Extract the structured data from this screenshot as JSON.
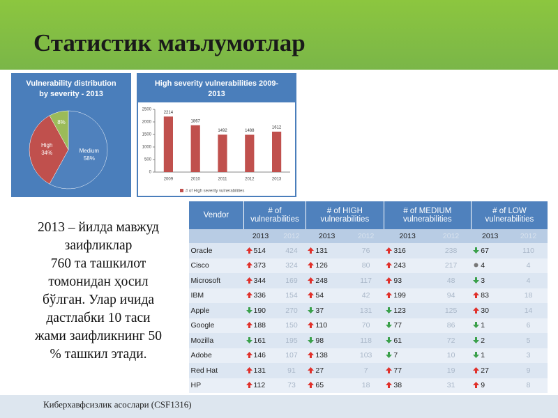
{
  "title": "Статистик маълумотлар",
  "chart_data": [
    {
      "type": "pie",
      "title": "Vulnerability distribution by severity - 2013",
      "categories": [
        "Medium",
        "High",
        "Low"
      ],
      "values": [
        58,
        34,
        8
      ],
      "value_labels": [
        "58%",
        "34%",
        "8%"
      ],
      "colors": [
        "#4f81bd",
        "#c0504d",
        "#9bbb59"
      ]
    },
    {
      "type": "bar",
      "title": "High severity vulnerabilities 2009-2013",
      "categories": [
        "2009",
        "2010",
        "2011",
        "2012",
        "2013"
      ],
      "series": [
        {
          "name": "# of High severity vulnerabilities",
          "color": "#c0504d",
          "values": [
            2214,
            1867,
            1492,
            1488,
            1612
          ]
        }
      ],
      "ylim": [
        0,
        2500
      ],
      "yticks": [
        0,
        500,
        1000,
        1500,
        2000,
        2500
      ]
    }
  ],
  "text": [
    "2013 – йилда мавжуд",
    "заифликлар",
    "760 та ташкилот",
    "томонидан ҳосил",
    "бўлган. Улар ичида",
    "дастлабки 10 таси",
    "жами заифликнинг 50",
    "% ташкил этади."
  ],
  "table": {
    "columns": [
      "Vendor",
      "# of vulnerabilities",
      "# of HIGH vulnerabilities",
      "# of MEDIUM vulnerabilities",
      "# of LOW vulnerabilities"
    ],
    "years": [
      "2013",
      "2012"
    ],
    "rows": [
      {
        "vendor": "Oracle",
        "values": [
          [
            514,
            424
          ],
          [
            131,
            76
          ],
          [
            316,
            238
          ],
          [
            67,
            110
          ]
        ]
      },
      {
        "vendor": "Cisco",
        "values": [
          [
            373,
            324
          ],
          [
            126,
            80
          ],
          [
            243,
            217
          ],
          [
            4,
            4
          ]
        ]
      },
      {
        "vendor": "Microsoft",
        "values": [
          [
            344,
            169
          ],
          [
            248,
            117
          ],
          [
            93,
            48
          ],
          [
            3,
            4
          ]
        ]
      },
      {
        "vendor": "IBM",
        "values": [
          [
            336,
            154
          ],
          [
            54,
            42
          ],
          [
            199,
            94
          ],
          [
            83,
            18
          ]
        ]
      },
      {
        "vendor": "Apple",
        "values": [
          [
            190,
            270
          ],
          [
            37,
            131
          ],
          [
            123,
            125
          ],
          [
            30,
            14
          ]
        ]
      },
      {
        "vendor": "Google",
        "values": [
          [
            188,
            150
          ],
          [
            110,
            70
          ],
          [
            77,
            86
          ],
          [
            1,
            6
          ]
        ]
      },
      {
        "vendor": "Mozilla",
        "values": [
          [
            161,
            195
          ],
          [
            98,
            118
          ],
          [
            61,
            72
          ],
          [
            2,
            5
          ]
        ]
      },
      {
        "vendor": "Adobe",
        "values": [
          [
            146,
            107
          ],
          [
            138,
            103
          ],
          [
            7,
            10
          ],
          [
            1,
            3
          ]
        ]
      },
      {
        "vendor": "Red Hat",
        "values": [
          [
            131,
            91
          ],
          [
            27,
            7
          ],
          [
            77,
            19
          ],
          [
            27,
            9
          ]
        ]
      },
      {
        "vendor": "HP",
        "values": [
          [
            112,
            73
          ],
          [
            65,
            18
          ],
          [
            38,
            31
          ],
          [
            9,
            8
          ]
        ]
      }
    ]
  },
  "footer": "Киберхавфсизлик асослари (CSF1316)"
}
